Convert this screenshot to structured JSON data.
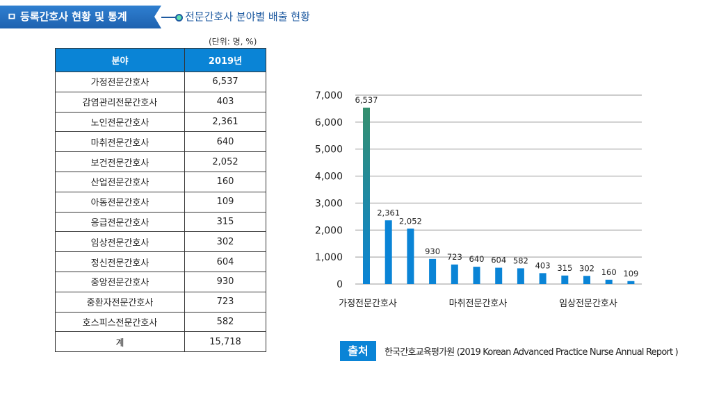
{
  "header": {
    "section_title": "ㅁ 등록간호사 현황 및 통계",
    "subtitle": "전문간호사 분야별 배출 현황"
  },
  "table": {
    "unit": "(단위: 명, %)",
    "columns": [
      "분야",
      "2019년"
    ],
    "rows": [
      [
        "가정전문간호사",
        "6,537"
      ],
      [
        "감염관리전문간호사",
        "403"
      ],
      [
        "노인전문간호사",
        "2,361"
      ],
      [
        "마취전문간호사",
        "640"
      ],
      [
        "보건전문간호사",
        "2,052"
      ],
      [
        "산업전문간호사",
        "160"
      ],
      [
        "아동전문간호사",
        "109"
      ],
      [
        "응급전문간호사",
        "315"
      ],
      [
        "임상전문간호사",
        "302"
      ],
      [
        "정신전문간호사",
        "604"
      ],
      [
        "중앙전문간호사",
        "930"
      ],
      [
        "중환자전문간호사",
        "723"
      ],
      [
        "호스피스전문간호사",
        "582"
      ],
      [
        "계",
        "15,718"
      ]
    ]
  },
  "chart_data": {
    "type": "bar",
    "categories": [
      "가정전문간호사",
      "노인전문간호사",
      "보건전문간호사",
      "중앙전문간호사",
      "중환자전문간호사",
      "마취전문간호사",
      "정신전문간호사",
      "호스피스전문간호사",
      "감염관리전문간호사",
      "응급전문간호사",
      "임상전문간호사",
      "산업전문간호사",
      "아동전문간호사"
    ],
    "values": [
      6537,
      2361,
      2052,
      930,
      723,
      640,
      604,
      582,
      403,
      315,
      302,
      160,
      109
    ],
    "data_labels": [
      "6,537",
      "2,361",
      "2,052",
      "930",
      "723",
      "640",
      "604",
      "582",
      "403",
      "315",
      "302",
      "160",
      "109"
    ],
    "shown_xtick_labels": [
      "가정전문간호사",
      "마취전문간호사",
      "임상전문간호사"
    ],
    "shown_xtick_indices": [
      0,
      5,
      10
    ],
    "yticks": [
      0,
      1000,
      2000,
      3000,
      4000,
      5000,
      6000,
      7000
    ],
    "ytick_labels": [
      "0",
      "1,000",
      "2,000",
      "3,000",
      "4,000",
      "5,000",
      "6,000",
      "7,000"
    ],
    "ylim": [
      0,
      7000
    ],
    "grid": true,
    "legend": "none",
    "colors": {
      "bar": "#0a84d6",
      "bar_top_gradient": "#358f6e"
    }
  },
  "source": {
    "badge": "출처",
    "text": "한국간호교육평가원 (2019 Korean Advanced Practice Nurse Annual Report )"
  }
}
